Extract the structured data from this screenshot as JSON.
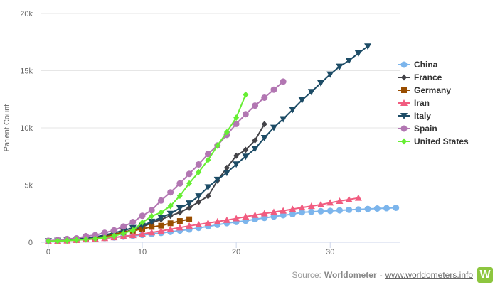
{
  "chart_data": {
    "type": "line",
    "title": "",
    "xlabel": "",
    "ylabel": "Patient Count",
    "xlim": [
      -0.75,
      37.4
    ],
    "ylim": [
      0,
      20000
    ],
    "x_ticks": [
      0,
      10,
      20,
      30
    ],
    "y_ticks": [
      0,
      5000,
      10000,
      15000,
      20000
    ],
    "y_tick_labels": [
      "0",
      "5k",
      "10k",
      "15k",
      "20k"
    ],
    "grid": true,
    "legend_position": "right",
    "series": [
      {
        "name": "China",
        "color": "#7cb5ec",
        "marker": "circle",
        "values": [
          106,
          132,
          170,
          213,
          259,
          304,
          362,
          426,
          492,
          565,
          638,
          724,
          813,
          910,
          1018,
          1115,
          1261,
          1383,
          1526,
          1669,
          1775,
          1873,
          2009,
          2126,
          2247,
          2360,
          2460,
          2618,
          2663,
          2715,
          2744,
          2788,
          2835,
          2870,
          2912,
          2948,
          2981,
          3013
        ]
      },
      {
        "name": "France",
        "color": "#434348",
        "marker": "diamond",
        "values": [
          127,
          148,
          175,
          264,
          372,
          450,
          562,
          674,
          860,
          1100,
          1331,
          1696,
          1995,
          2314,
          2606,
          3024,
          3523,
          4032,
          5387,
          6507,
          7560,
          8078,
          8911,
          10328
        ]
      },
      {
        "name": "Germany",
        "color": "#994d00",
        "marker": "square",
        "values": [
          100,
          120,
          150,
          200,
          260,
          340,
          450,
          680,
          890,
          1000,
          1180,
          1340,
          1450,
          1660,
          1860,
          2010
        ]
      },
      {
        "name": "Iran",
        "color": "#f15c80",
        "marker": "triangle",
        "values": [
          107,
          124,
          145,
          194,
          237,
          291,
          354,
          429,
          514,
          611,
          724,
          853,
          988,
          1135,
          1284,
          1433,
          1556,
          1685,
          1812,
          1934,
          2077,
          2234,
          2378,
          2517,
          2640,
          2757,
          2898,
          3036,
          3160,
          3294,
          3452,
          3603,
          3739,
          3872
        ]
      },
      {
        "name": "Italy",
        "color": "#1d4c66",
        "marker": "triangle-down",
        "values": [
          107,
          148,
          197,
          233,
          366,
          463,
          631,
          827,
          1016,
          1266,
          1441,
          1809,
          2158,
          2503,
          2978,
          3405,
          4032,
          4825,
          5476,
          6077,
          6820,
          7503,
          8165,
          9134,
          10023,
          10779,
          11591,
          12428,
          13155,
          13915,
          14681,
          15362,
          15887,
          16523,
          17127
        ]
      },
      {
        "name": "Spain",
        "color": "#b276b2",
        "marker": "circle",
        "values": [
          133,
          195,
          289,
          342,
          533,
          623,
          830,
          1043,
          1375,
          1772,
          2311,
          2808,
          3647,
          4365,
          5138,
          5982,
          6803,
          7716,
          8464,
          9387,
          10348,
          11198,
          11947,
          12641,
          13341,
          14045
        ]
      },
      {
        "name": "United States",
        "color": "#66ee33",
        "marker": "diamond",
        "values": [
          100,
          120,
          150,
          200,
          250,
          310,
          400,
          550,
          780,
          1050,
          1720,
          2280,
          2610,
          3170,
          4060,
          5150,
          6130,
          7190,
          8450,
          9630,
          10890,
          12900
        ]
      }
    ]
  },
  "footer": {
    "source_label": "Source:",
    "source_name": "Worldometer",
    "separator": "-",
    "link": "www.worldometers.info",
    "logo_letter": "W"
  }
}
